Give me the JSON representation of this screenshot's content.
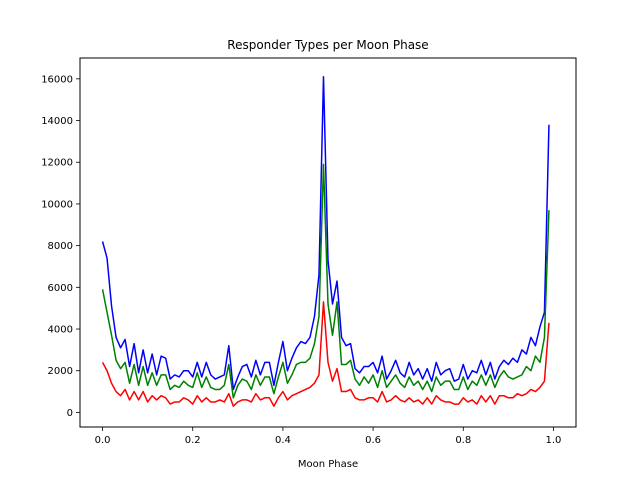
{
  "chart_data": {
    "type": "line",
    "title": "Responder Types per Moon Phase",
    "xlabel": "Moon Phase",
    "ylabel": "",
    "xlim": [
      -0.05,
      1.05
    ],
    "ylim": [
      -700,
      17000
    ],
    "xticks": [
      0.0,
      0.2,
      0.4,
      0.6,
      0.8,
      1.0
    ],
    "xtick_labels": [
      "0.0",
      "0.2",
      "0.4",
      "0.6",
      "0.8",
      "1.0"
    ],
    "yticks": [
      0,
      2000,
      4000,
      6000,
      8000,
      10000,
      12000,
      14000,
      16000
    ],
    "ytick_labels": [
      "0",
      "2000",
      "4000",
      "6000",
      "8000",
      "10000",
      "12000",
      "14000",
      "16000"
    ],
    "grid": false,
    "legend": false,
    "x_start": 0.0,
    "x_step": 0.01,
    "series": [
      {
        "color": "#0000ff",
        "values": [
          8200,
          7400,
          5100,
          3600,
          3100,
          3500,
          2200,
          3300,
          1900,
          3000,
          1900,
          2800,
          1800,
          2700,
          2600,
          1600,
          1800,
          1700,
          2000,
          2000,
          1700,
          2400,
          1700,
          2400,
          1800,
          1600,
          1700,
          1800,
          3200,
          1100,
          1700,
          2200,
          2300,
          1700,
          2500,
          1800,
          2400,
          2400,
          1300,
          2400,
          3400,
          2000,
          2600,
          3100,
          3400,
          3300,
          3600,
          4600,
          6600,
          16100,
          7300,
          5200,
          6300,
          3600,
          3200,
          3300,
          2100,
          1900,
          2200,
          2200,
          2400,
          1900,
          2700,
          1600,
          2000,
          2500,
          1900,
          1700,
          2400,
          1800,
          2100,
          1600,
          2100,
          1500,
          2400,
          1800,
          2000,
          2100,
          1500,
          1600,
          2300,
          1600,
          2000,
          1900,
          2500,
          1800,
          2400,
          1600,
          2200,
          2500,
          2300,
          2600,
          2400,
          3000,
          2800,
          3600,
          3200,
          4100,
          4800,
          13800
        ]
      },
      {
        "color": "#008000",
        "values": [
          5900,
          4800,
          3700,
          2500,
          2100,
          2400,
          1400,
          2300,
          1300,
          2200,
          1300,
          1900,
          1300,
          1800,
          1800,
          1100,
          1300,
          1200,
          1500,
          1300,
          1200,
          1900,
          1200,
          1700,
          1200,
          1100,
          1100,
          1300,
          2300,
          700,
          1300,
          1600,
          1500,
          1100,
          1800,
          1300,
          1700,
          1700,
          900,
          1700,
          2400,
          1400,
          1800,
          2300,
          2400,
          2400,
          2600,
          3300,
          4600,
          11900,
          5200,
          3700,
          5300,
          2300,
          2300,
          2500,
          1600,
          1300,
          1700,
          1400,
          1800,
          1200,
          2000,
          1200,
          1500,
          1800,
          1400,
          1200,
          1700,
          1300,
          1500,
          1100,
          1500,
          1000,
          1700,
          1300,
          1500,
          1500,
          1100,
          1100,
          1700,
          1100,
          1500,
          1300,
          1800,
          1300,
          1800,
          1200,
          1700,
          2000,
          1700,
          1600,
          1700,
          1800,
          2200,
          2000,
          2700,
          2400,
          3600,
          9700
        ]
      },
      {
        "color": "#ff0000",
        "values": [
          2400,
          2000,
          1400,
          1000,
          800,
          1100,
          600,
          1000,
          600,
          1000,
          500,
          800,
          600,
          800,
          700,
          400,
          500,
          500,
          700,
          600,
          400,
          800,
          500,
          700,
          500,
          500,
          600,
          500,
          900,
          300,
          500,
          600,
          600,
          500,
          900,
          600,
          700,
          700,
          300,
          700,
          1000,
          600,
          800,
          900,
          1000,
          1100,
          1200,
          1400,
          1800,
          5300,
          2400,
          1500,
          2100,
          1000,
          1000,
          1100,
          700,
          600,
          600,
          700,
          700,
          500,
          1000,
          500,
          600,
          800,
          600,
          500,
          700,
          500,
          600,
          400,
          700,
          400,
          800,
          600,
          500,
          500,
          400,
          400,
          700,
          500,
          600,
          400,
          800,
          500,
          800,
          400,
          800,
          800,
          700,
          700,
          900,
          800,
          900,
          1100,
          1000,
          1200,
          1500,
          4300
        ]
      }
    ]
  }
}
